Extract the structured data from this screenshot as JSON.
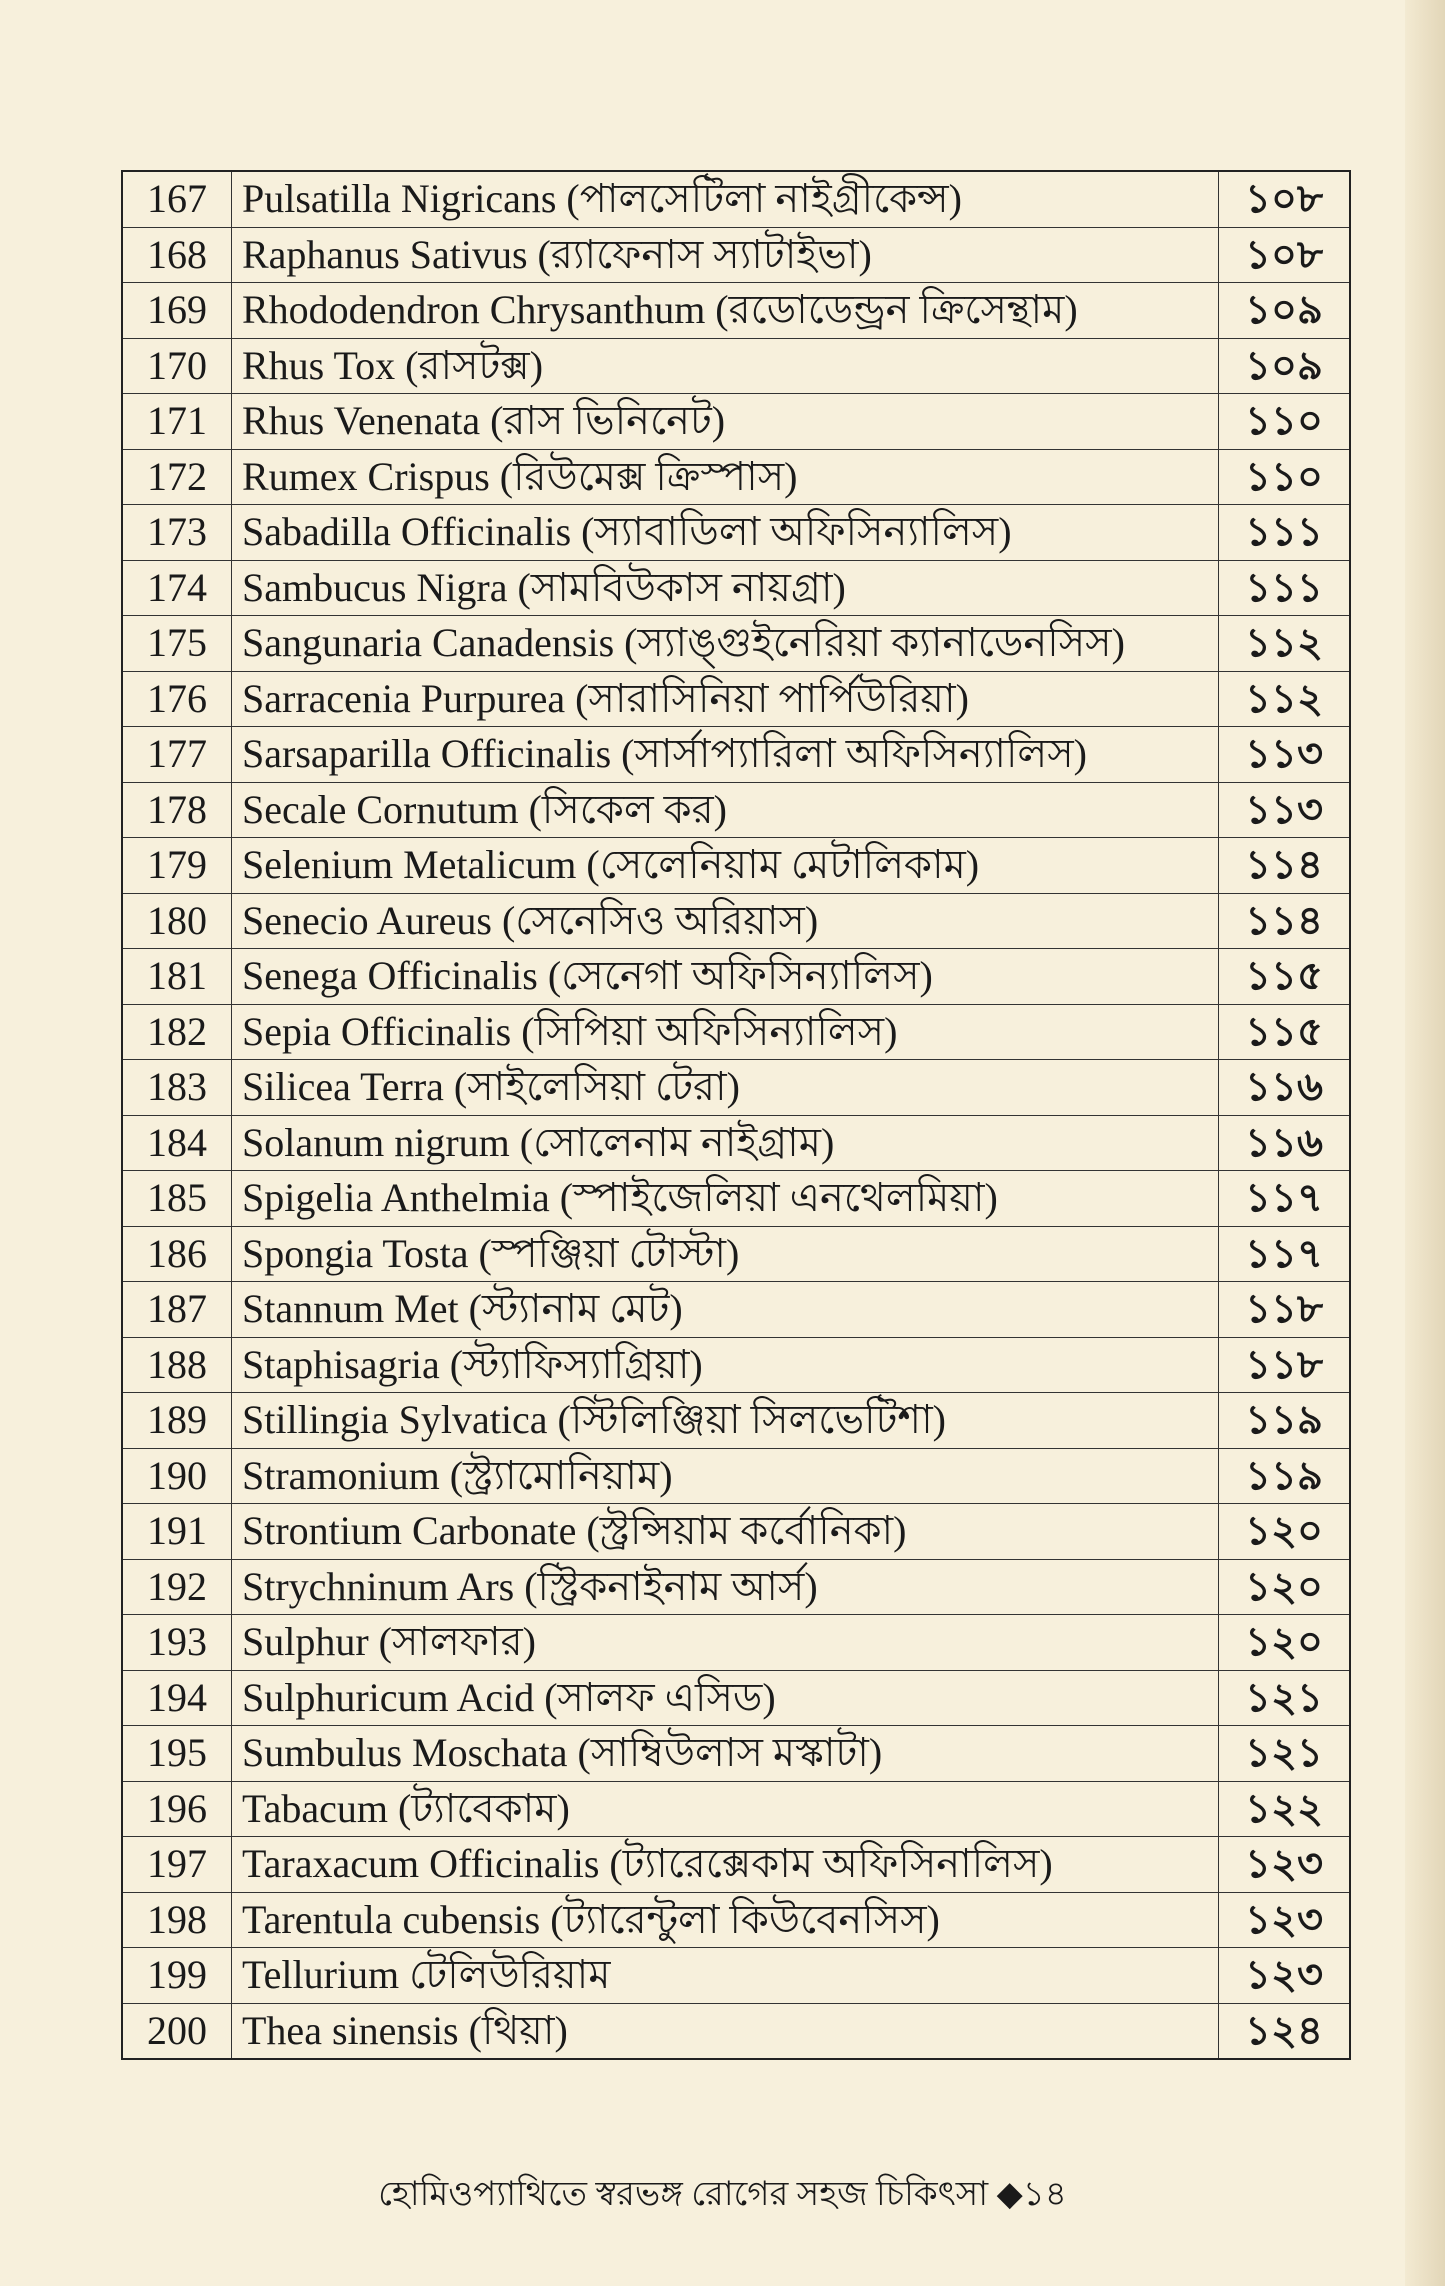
{
  "rows": [
    {
      "no": "167",
      "name": "Pulsatilla Nigricans (পালসেটিলা নাইগ্রীকেন্স)",
      "page": "১০৮"
    },
    {
      "no": "168",
      "name": "Raphanus Sativus (র‍্যাফেনাস স্যাটাইভা)",
      "page": "১০৮"
    },
    {
      "no": "169",
      "name": "Rhododendron Chrysanthum (রডোডেন্ড্রন ক্রিসেন্থাম)",
      "page": "১০৯"
    },
    {
      "no": "170",
      "name": "Rhus Tox (রাসটক্স)",
      "page": "১০৯"
    },
    {
      "no": "171",
      "name": "Rhus Venenata (রাস ভিনিনেট)",
      "page": "১১০"
    },
    {
      "no": "172",
      "name": "Rumex Crispus (রিউমেক্স ক্রিস্পাস)",
      "page": "১১০"
    },
    {
      "no": "173",
      "name": "Sabadilla Officinalis (স্যাবাডিলা অফিসিন্যালিস)",
      "page": "১১১"
    },
    {
      "no": "174",
      "name": "Sambucus Nigra (সামবিউকাস নায়গ্রা)",
      "page": "১১১"
    },
    {
      "no": "175",
      "name": "Sangunaria Canadensis (স্যাঙ্গুইনেরিয়া ক্যানাডেনসিস)",
      "page": "১১২"
    },
    {
      "no": "176",
      "name": "Sarracenia Purpurea (সারাসিনিয়া পার্পিউরিয়া)",
      "page": "১১২"
    },
    {
      "no": "177",
      "name": "Sarsaparilla Officinalis (সার্সাপ্যারিলা অফিসিন্যালিস)",
      "page": "১১৩"
    },
    {
      "no": "178",
      "name": "Secale Cornutum (সিকেল কর)",
      "page": "১১৩"
    },
    {
      "no": "179",
      "name": "Selenium Metalicum (সেলেনিয়াম মেটালিকাম)",
      "page": "১১৪"
    },
    {
      "no": "180",
      "name": "Senecio Aureus (সেনেসিও অরিয়াস)",
      "page": "১১৪"
    },
    {
      "no": "181",
      "name": "Senega Officinalis (সেনেগা অফিসিন্যালিস)",
      "page": "১১৫"
    },
    {
      "no": "182",
      "name": "Sepia Officinalis (সিপিয়া অফিসিন্যালিস)",
      "page": "১১৫"
    },
    {
      "no": "183",
      "name": "Silicea Terra (সাইলেসিয়া টেরা)",
      "page": "১১৬"
    },
    {
      "no": "184",
      "name": "Solanum nigrum (সোলেনাম নাইগ্রাম)",
      "page": "১১৬"
    },
    {
      "no": "185",
      "name": "Spigelia Anthelmia (স্পাইজেলিয়া এনথেলমিয়া)",
      "page": "১১৭"
    },
    {
      "no": "186",
      "name": "Spongia Tosta (স্পঞ্জিয়া টোস্টা)",
      "page": "১১৭"
    },
    {
      "no": "187",
      "name": "Stannum Met (স্ট্যানাম মেট)",
      "page": "১১৮"
    },
    {
      "no": "188",
      "name": "Staphisagria (স্ট্যাফিস্যাগ্রিয়া)",
      "page": "১১৮"
    },
    {
      "no": "189",
      "name": "Stillingia Sylvatica (স্টিলিঞ্জিয়া সিলভেটিশা)",
      "page": "১১৯"
    },
    {
      "no": "190",
      "name": "Stramonium (স্ট্র্যামোনিয়াম)",
      "page": "১১৯"
    },
    {
      "no": "191",
      "name": "Strontium Carbonate (স্ট্রন্সিয়াম কর্বোনিকা)",
      "page": "১২০"
    },
    {
      "no": "192",
      "name": "Strychninum Ars (স্ট্রিকনাইনাম আর্স)",
      "page": "১২০"
    },
    {
      "no": "193",
      "name": "Sulphur (সালফার)",
      "page": "১২০"
    },
    {
      "no": "194",
      "name": "Sulphuricum Acid (সালফ এসিড)",
      "page": "১২১"
    },
    {
      "no": "195",
      "name": "Sumbulus Moschata (সাম্বিউলাস মস্কাটা)",
      "page": "১২১"
    },
    {
      "no": "196",
      "name": "Tabacum (ট্যাবেকাম)",
      "page": "১২২"
    },
    {
      "no": "197",
      "name": "Taraxacum Officinalis (ট্যারেক্সেকাম অফিসিনালিস)",
      "page": "১২৩"
    },
    {
      "no": "198",
      "name": "Tarentula cubensis (ট্যারেন্টুলা কিউবেনসিস)",
      "page": "১২৩"
    },
    {
      "no": "199",
      "name": "Tellurium টেলিউরিয়াম",
      "page": "১২৩"
    },
    {
      "no": "200",
      "name": "Thea sinensis (থিয়া)",
      "page": "১২৪"
    }
  ],
  "footer": "হোমিওপ্যাথিতে স্বরভঙ্গ রোগের সহজ চিকিৎসা ◆১৪"
}
